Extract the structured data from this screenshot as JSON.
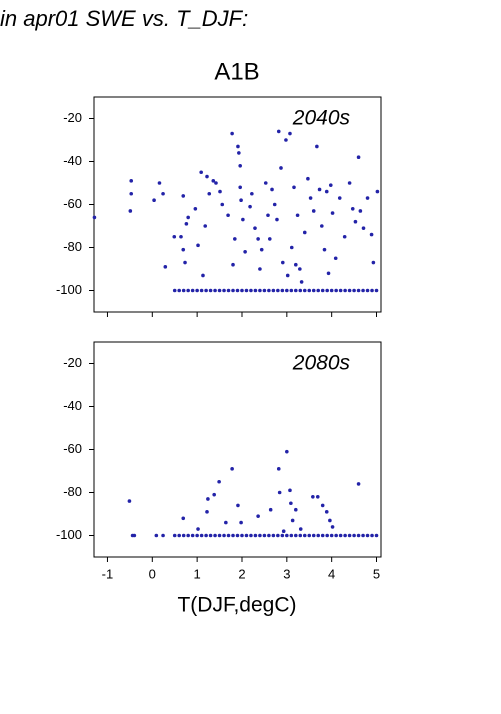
{
  "page_title": "in apr01 SWE vs. T_DJF:",
  "x_label": "T(DJF,degC)",
  "chart_data": [
    {
      "type": "scatter",
      "title": "A1B",
      "annotation": "2040s",
      "color": "#2323a8",
      "xlim": [
        -1.3,
        5.1
      ],
      "ylim": [
        -110,
        -10
      ],
      "xticks": [
        -1,
        0,
        1,
        2,
        3,
        4,
        5
      ],
      "yticks": [
        -20,
        -40,
        -60,
        -80,
        -100
      ],
      "x": [
        -1.29,
        -0.47,
        -0.47,
        -0.49,
        0.04,
        0.16,
        0.24,
        0.29,
        0.49,
        0.69,
        0.64,
        0.69,
        0.73,
        0.76,
        0.8,
        0.96,
        1.02,
        1.09,
        1.13,
        1.18,
        1.22,
        1.27,
        1.36,
        1.42,
        1.51,
        1.56,
        1.69,
        1.78,
        1.8,
        1.84,
        1.91,
        1.93,
        1.96,
        1.96,
        1.98,
        2.02,
        2.07,
        2.18,
        2.22,
        2.29,
        2.36,
        2.4,
        2.44,
        2.53,
        2.58,
        2.62,
        2.67,
        2.73,
        2.78,
        2.82,
        2.87,
        2.91,
        2.98,
        3.02,
        3.07,
        3.11,
        3.16,
        3.2,
        3.24,
        3.29,
        3.33,
        3.4,
        3.47,
        3.53,
        3.6,
        3.67,
        3.73,
        3.78,
        3.84,
        3.89,
        3.93,
        3.98,
        4.02,
        4.09,
        4.18,
        4.29,
        4.4,
        4.47,
        4.53,
        4.6,
        4.64,
        4.71,
        4.8,
        4.89,
        4.93,
        5.02,
        0.5,
        0.6,
        0.7,
        0.8,
        0.9,
        1.0,
        1.1,
        1.2,
        1.3,
        1.4,
        1.5,
        1.6,
        1.7,
        1.8,
        1.9,
        2.0,
        2.1,
        2.2,
        2.3,
        2.4,
        2.5,
        2.6,
        2.7,
        2.8,
        2.9,
        3.0,
        3.1,
        3.2,
        3.3,
        3.4,
        3.5,
        3.6,
        3.7,
        3.8,
        3.9,
        4.0,
        4.1,
        4.2,
        4.3,
        4.4,
        4.5,
        4.6,
        4.7,
        4.8,
        4.9,
        5.0
      ],
      "values": [
        -66,
        -49,
        -55,
        -63,
        -58,
        -50,
        -55,
        -89,
        -75,
        -56,
        -75,
        -81,
        -87,
        -69,
        -66,
        -62,
        -79,
        -45,
        -93,
        -70,
        -47,
        -55,
        -49,
        -50,
        -54,
        -60,
        -65,
        -27,
        -88,
        -76,
        -33,
        -36,
        -42,
        -52,
        -58,
        -67,
        -82,
        -61,
        -55,
        -71,
        -76,
        -90,
        -81,
        -50,
        -65,
        -76,
        -53,
        -60,
        -67,
        -26,
        -43,
        -87,
        -30,
        -93,
        -27,
        -80,
        -52,
        -88,
        -65,
        -90,
        -96,
        -73,
        -48,
        -57,
        -63,
        -33,
        -53,
        -70,
        -81,
        -54,
        -92,
        -51,
        -64,
        -85,
        -57,
        -75,
        -50,
        -62,
        -68,
        -38,
        -63,
        -71,
        -57,
        -74,
        -87,
        -54,
        -100,
        -100,
        -100,
        -100,
        -100,
        -100,
        -100,
        -100,
        -100,
        -100,
        -100,
        -100,
        -100,
        -100,
        -100,
        -100,
        -100,
        -100,
        -100,
        -100,
        -100,
        -100,
        -100,
        -100,
        -100,
        -100,
        -100,
        -100,
        -100,
        -100,
        -100,
        -100,
        -100,
        -100,
        -100,
        -100,
        -100,
        -100,
        -100,
        -100,
        -100,
        -100,
        -100,
        -100,
        -100,
        -100
      ]
    },
    {
      "type": "scatter",
      "annotation": "2080s",
      "color": "#2323a8",
      "xlim": [
        -1.3,
        5.1
      ],
      "ylim": [
        -110,
        -10
      ],
      "xticks": [
        -1,
        0,
        1,
        2,
        3,
        4,
        5
      ],
      "yticks": [
        -20,
        -40,
        -60,
        -80,
        -100
      ],
      "x": [
        -0.51,
        -0.44,
        -0.4,
        0.09,
        0.24,
        0.69,
        1.02,
        1.22,
        1.24,
        1.38,
        1.49,
        1.64,
        1.78,
        1.91,
        1.98,
        2.36,
        2.64,
        2.82,
        2.84,
        2.93,
        3.0,
        3.07,
        3.09,
        3.13,
        3.2,
        3.31,
        3.58,
        3.69,
        3.8,
        3.89,
        3.96,
        4.02,
        4.6,
        0.5,
        0.6,
        0.7,
        0.8,
        0.9,
        1.0,
        1.1,
        1.2,
        1.3,
        1.4,
        1.5,
        1.6,
        1.7,
        1.8,
        1.9,
        2.0,
        2.1,
        2.2,
        2.3,
        2.4,
        2.5,
        2.6,
        2.7,
        2.8,
        2.9,
        3.0,
        3.1,
        3.2,
        3.3,
        3.4,
        3.5,
        3.6,
        3.7,
        3.8,
        3.9,
        4.0,
        4.1,
        4.2,
        4.3,
        4.4,
        4.5,
        4.6,
        4.7,
        4.8,
        4.9,
        5.0
      ],
      "values": [
        -84,
        -100,
        -100,
        -100,
        -100,
        -92,
        -97,
        -89,
        -83,
        -81,
        -75,
        -94,
        -69,
        -86,
        -94,
        -91,
        -88,
        -69,
        -80,
        -98,
        -61,
        -79,
        -85,
        -93,
        -88,
        -97,
        -82,
        -82,
        -86,
        -89,
        -93,
        -96,
        -76,
        -100,
        -100,
        -100,
        -100,
        -100,
        -100,
        -100,
        -100,
        -100,
        -100,
        -100,
        -100,
        -100,
        -100,
        -100,
        -100,
        -100,
        -100,
        -100,
        -100,
        -100,
        -100,
        -100,
        -100,
        -100,
        -100,
        -100,
        -100,
        -100,
        -100,
        -100,
        -100,
        -100,
        -100,
        -100,
        -100,
        -100,
        -100,
        -100,
        -100,
        -100,
        -100,
        -100,
        -100,
        -100,
        -100
      ]
    }
  ]
}
